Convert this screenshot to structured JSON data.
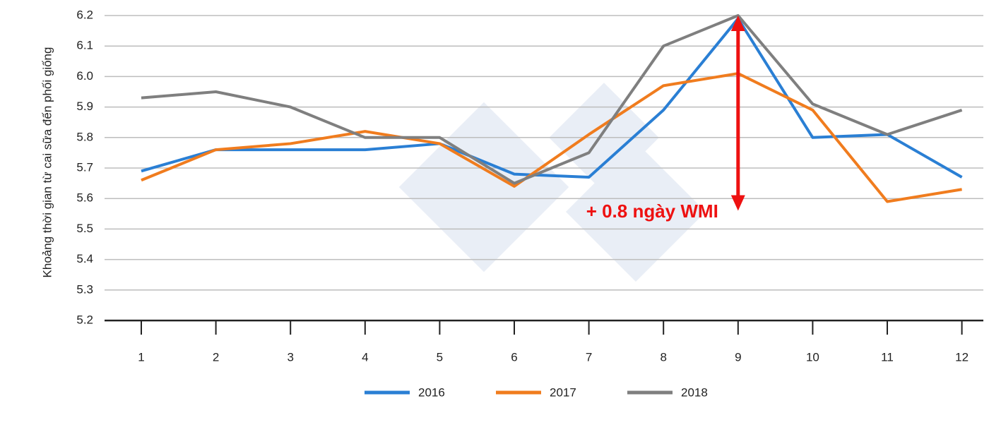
{
  "chart_data": {
    "type": "line",
    "y_label": "Khoảng thời gian từ cai sữa đến phối giống",
    "categories": [
      "1",
      "2",
      "3",
      "4",
      "5",
      "6",
      "7",
      "8",
      "9",
      "10",
      "11",
      "12"
    ],
    "series": [
      {
        "name": "2016",
        "color": "#2a7fd4",
        "values": [
          5.69,
          5.76,
          5.76,
          5.76,
          5.78,
          5.68,
          5.67,
          5.89,
          6.19,
          5.8,
          5.81,
          5.67
        ]
      },
      {
        "name": "2017",
        "color": "#f07c1e",
        "values": [
          5.66,
          5.76,
          5.78,
          5.82,
          5.78,
          5.64,
          5.81,
          5.97,
          6.01,
          5.89,
          5.59,
          5.63
        ]
      },
      {
        "name": "2018",
        "color": "#7f7f7f",
        "values": [
          5.93,
          5.95,
          5.9,
          5.8,
          5.8,
          5.65,
          5.75,
          6.1,
          6.2,
          5.91,
          5.81,
          5.89
        ]
      }
    ],
    "ylim": [
      5.2,
      6.2
    ],
    "yticks": [
      5.2,
      5.3,
      5.4,
      5.5,
      5.6,
      5.7,
      5.8,
      5.9,
      {
        "value": 6,
        "label": "6.0"
      },
      6.1,
      6.2
    ],
    "grid": true,
    "legend": "bottom",
    "annotation": {
      "text": "+ 0.8 ngày WMI",
      "color": "#ee1111",
      "category": 8,
      "y_top": 6.2,
      "y_bottom": 5.56
    }
  }
}
